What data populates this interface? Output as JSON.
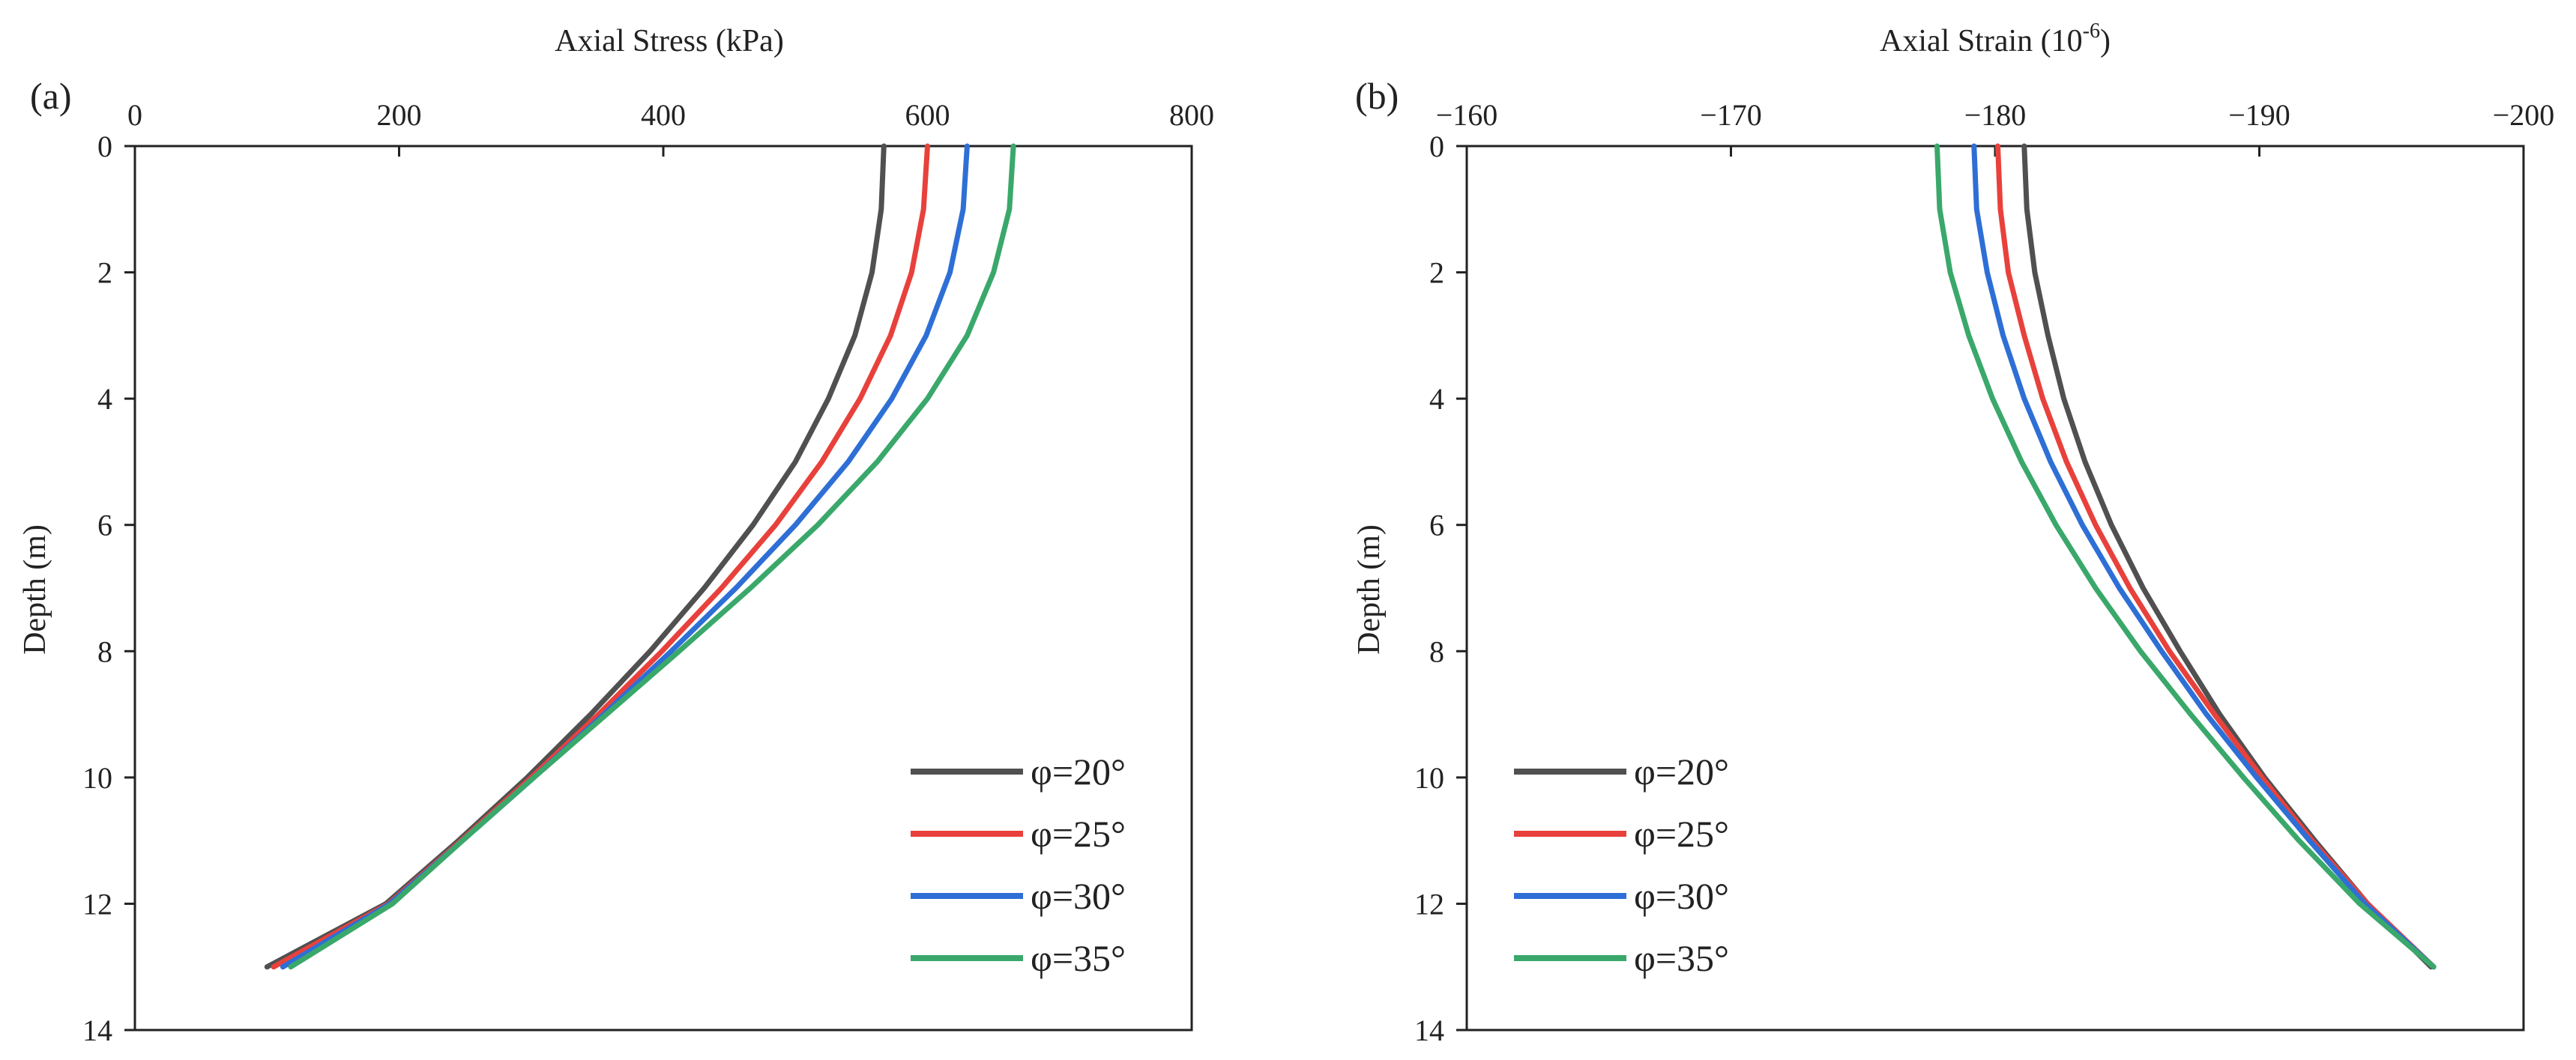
{
  "chart_data": [
    {
      "type": "line",
      "panel_label": "(a)",
      "xlabel": "Axial Stress (kPa)",
      "ylabel": "Depth (m)",
      "xlim": [
        0,
        800
      ],
      "ylim": [
        0,
        14
      ],
      "x_ticks": [
        0,
        200,
        400,
        600,
        800
      ],
      "x_tick_labels": [
        "0",
        "200",
        "400",
        "600",
        "800"
      ],
      "y_ticks": [
        0,
        2,
        4,
        6,
        8,
        10,
        12,
        14
      ],
      "y_tick_labels": [
        "0",
        "2",
        "4",
        "6",
        "8",
        "10",
        "12",
        "14"
      ],
      "legend_position": "bottom-right",
      "series": [
        {
          "name": "φ=20°",
          "color": "#505050",
          "depth": [
            0,
            1,
            2,
            3,
            4,
            5,
            6,
            7,
            8,
            9,
            10,
            11,
            12,
            13
          ],
          "values": [
            567,
            565,
            558,
            545,
            525,
            500,
            468,
            431,
            390,
            345,
            297,
            245,
            190,
            100
          ]
        },
        {
          "name": "φ=25°",
          "color": "#e8413c",
          "depth": [
            0,
            1,
            2,
            3,
            4,
            5,
            6,
            7,
            8,
            9,
            10,
            11,
            12,
            13
          ],
          "values": [
            600,
            597,
            588,
            572,
            549,
            520,
            485,
            444,
            399,
            351,
            300,
            247,
            192,
            105
          ]
        },
        {
          "name": "φ=30°",
          "color": "#2e6fd6",
          "depth": [
            0,
            1,
            2,
            3,
            4,
            5,
            6,
            7,
            8,
            9,
            10,
            11,
            12,
            13
          ],
          "values": [
            630,
            627,
            617,
            599,
            573,
            540,
            500,
            455,
            406,
            355,
            302,
            248,
            193,
            112
          ]
        },
        {
          "name": "φ=35°",
          "color": "#3aa86b",
          "depth": [
            0,
            1,
            2,
            3,
            4,
            5,
            6,
            7,
            8,
            9,
            10,
            11,
            12,
            13
          ],
          "values": [
            665,
            662,
            650,
            630,
            600,
            562,
            517,
            466,
            412,
            357,
            302,
            248,
            195,
            118
          ]
        }
      ]
    },
    {
      "type": "line",
      "panel_label": "(b)",
      "xlabel": "Axial Strain (10",
      "xlabel_sup": "-6",
      "xlabel_close": ")",
      "ylabel": "Depth (m)",
      "xlim": [
        -160,
        -200
      ],
      "ylim": [
        0,
        14
      ],
      "x_ticks": [
        -160,
        -170,
        -180,
        -190,
        -200
      ],
      "x_tick_labels": [
        "−160",
        "−170",
        "−180",
        "−190",
        "−200"
      ],
      "y_ticks": [
        0,
        2,
        4,
        6,
        8,
        10,
        12,
        14
      ],
      "y_tick_labels": [
        "0",
        "2",
        "4",
        "6",
        "8",
        "10",
        "12",
        "14"
      ],
      "legend_position": "bottom-left",
      "series": [
        {
          "name": "φ=20°",
          "color": "#505050",
          "depth": [
            0,
            1,
            2,
            3,
            4,
            5,
            6,
            7,
            8,
            9,
            10,
            11,
            12,
            13
          ],
          "values": [
            -181.1,
            -181.2,
            -181.5,
            -182.0,
            -182.6,
            -183.4,
            -184.4,
            -185.6,
            -187.0,
            -188.5,
            -190.2,
            -192.1,
            -194.1,
            -196.5
          ]
        },
        {
          "name": "φ=25°",
          "color": "#e8413c",
          "depth": [
            0,
            1,
            2,
            3,
            4,
            5,
            6,
            7,
            8,
            9,
            10,
            11,
            12,
            13
          ],
          "values": [
            -180.1,
            -180.2,
            -180.5,
            -181.1,
            -181.8,
            -182.7,
            -183.8,
            -185.1,
            -186.6,
            -188.3,
            -190.1,
            -192.0,
            -194.1,
            -196.6
          ]
        },
        {
          "name": "φ=30°",
          "color": "#2e6fd6",
          "depth": [
            0,
            1,
            2,
            3,
            4,
            5,
            6,
            7,
            8,
            9,
            10,
            11,
            12,
            13
          ],
          "values": [
            -179.2,
            -179.3,
            -179.7,
            -180.3,
            -181.1,
            -182.1,
            -183.3,
            -184.7,
            -186.3,
            -188.0,
            -189.9,
            -191.9,
            -194.0,
            -196.6
          ]
        },
        {
          "name": "φ=35°",
          "color": "#3aa86b",
          "depth": [
            0,
            1,
            2,
            3,
            4,
            5,
            6,
            7,
            8,
            9,
            10,
            11,
            12,
            13
          ],
          "values": [
            -177.8,
            -177.9,
            -178.3,
            -179.0,
            -179.9,
            -181.0,
            -182.3,
            -183.8,
            -185.5,
            -187.4,
            -189.4,
            -191.5,
            -193.8,
            -196.6
          ]
        }
      ]
    }
  ]
}
